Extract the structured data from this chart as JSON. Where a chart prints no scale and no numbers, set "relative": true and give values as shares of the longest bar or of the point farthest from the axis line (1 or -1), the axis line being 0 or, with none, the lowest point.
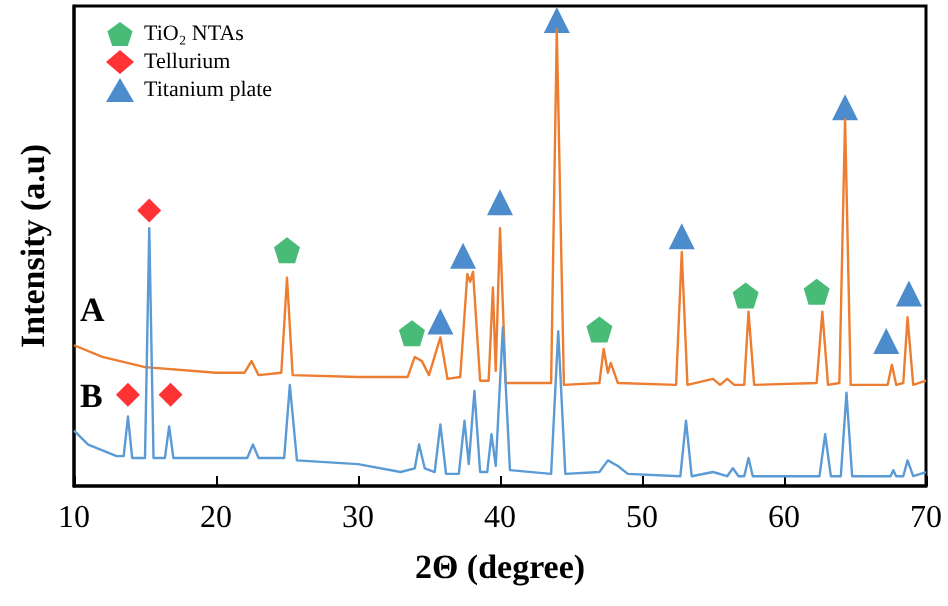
{
  "chart_data": {
    "type": "line",
    "relative": true,
    "xlabel": "2Θ (degree)",
    "ylabel": "Intensity (a.u)",
    "xlim": [
      10,
      70
    ],
    "xticks": [
      10,
      20,
      30,
      40,
      50,
      60,
      70
    ],
    "legend": "top left",
    "grid": false,
    "series": [
      {
        "name": "A",
        "color": "#ed7d31",
        "x": [
          10,
          12,
          15,
          20,
          22,
          22.5,
          23,
          24.6,
          25,
          25.4,
          30,
          33.5,
          34,
          34.5,
          35,
          35.8,
          36.3,
          37.2,
          37.7,
          37.9,
          38.1,
          38.6,
          39.2,
          39.5,
          39.7,
          40,
          40.4,
          43.6,
          44,
          44.5,
          47,
          47.3,
          47.6,
          47.8,
          48.3,
          52.4,
          52.8,
          53.2,
          55,
          55.5,
          56,
          56.5,
          57.2,
          57.5,
          57.9,
          62.3,
          62.7,
          63.1,
          63.9,
          64.3,
          64.7,
          67.3,
          67.6,
          67.9,
          68.4,
          68.7,
          69.1,
          70
        ],
        "values": [
          0.302,
          0.277,
          0.255,
          0.243,
          0.243,
          0.268,
          0.238,
          0.243,
          0.447,
          0.238,
          0.234,
          0.234,
          0.277,
          0.268,
          0.238,
          0.319,
          0.23,
          0.234,
          0.455,
          0.438,
          0.46,
          0.226,
          0.226,
          0.426,
          0.247,
          0.553,
          0.221,
          0.221,
          0.98,
          0.217,
          0.221,
          0.294,
          0.243,
          0.264,
          0.221,
          0.217,
          0.502,
          0.217,
          0.23,
          0.217,
          0.23,
          0.217,
          0.217,
          0.374,
          0.217,
          0.221,
          0.374,
          0.217,
          0.221,
          0.787,
          0.217,
          0.217,
          0.26,
          0.217,
          0.221,
          0.362,
          0.217,
          0.226
        ]
      },
      {
        "name": "B",
        "color": "#5b9bd5",
        "x": [
          10,
          11,
          13,
          13.5,
          13.8,
          14.1,
          15,
          15.3,
          15.6,
          16.4,
          16.7,
          17,
          20,
          22.2,
          22.6,
          23,
          24.8,
          25.2,
          25.7,
          30,
          33,
          34,
          34.3,
          34.7,
          35.4,
          35.8,
          36.2,
          37.1,
          37.5,
          37.8,
          38.2,
          38.6,
          39.1,
          39.4,
          39.7,
          40.2,
          40.7,
          43.6,
          44.1,
          44.6,
          47,
          47.6,
          48.3,
          49,
          52.7,
          53.1,
          53.5,
          55,
          56,
          56.4,
          56.8,
          57.2,
          57.5,
          57.8,
          62.5,
          62.9,
          63.3,
          64,
          64.4,
          64.8,
          67.5,
          67.7,
          67.9,
          68.4,
          68.7,
          69.1,
          70
        ],
        "values": [
          0.119,
          0.089,
          0.064,
          0.064,
          0.149,
          0.06,
          0.06,
          0.553,
          0.06,
          0.06,
          0.128,
          0.06,
          0.06,
          0.06,
          0.089,
          0.06,
          0.06,
          0.217,
          0.055,
          0.047,
          0.03,
          0.038,
          0.089,
          0.038,
          0.03,
          0.132,
          0.026,
          0.026,
          0.14,
          0.047,
          0.204,
          0.03,
          0.03,
          0.111,
          0.043,
          0.34,
          0.034,
          0.026,
          0.332,
          0.026,
          0.03,
          0.055,
          0.043,
          0.026,
          0.021,
          0.14,
          0.021,
          0.03,
          0.021,
          0.038,
          0.021,
          0.021,
          0.06,
          0.021,
          0.021,
          0.111,
          0.021,
          0.021,
          0.2,
          0.021,
          0.021,
          0.034,
          0.021,
          0.021,
          0.055,
          0.021,
          0.03
        ]
      },
      {
        "type": "scatter",
        "name": "TiO₂ NTAs",
        "color": "#1aaa55",
        "x": [
          25,
          33.8,
          47,
          57.3,
          62.3
        ],
        "values": [
          0.506,
          0.328,
          0.336,
          0.409,
          0.417
        ]
      },
      {
        "type": "scatter",
        "name": "Tellurium",
        "color": "#ff0000",
        "marker": "diamond",
        "x": [
          15.3,
          13.8,
          16.8
        ],
        "values": [
          0.591,
          0.196,
          0.196
        ]
      },
      {
        "type": "scatter",
        "name": "Titanium plate",
        "color": "#1f6fc0",
        "marker": "triangle",
        "x": [
          35.8,
          37.4,
          40,
          44,
          52.8,
          64.3,
          67.2,
          68.8
        ],
        "values": [
          0.353,
          0.494,
          0.609,
          1,
          0.536,
          0.813,
          0.311,
          0.413
        ]
      }
    ]
  }
}
